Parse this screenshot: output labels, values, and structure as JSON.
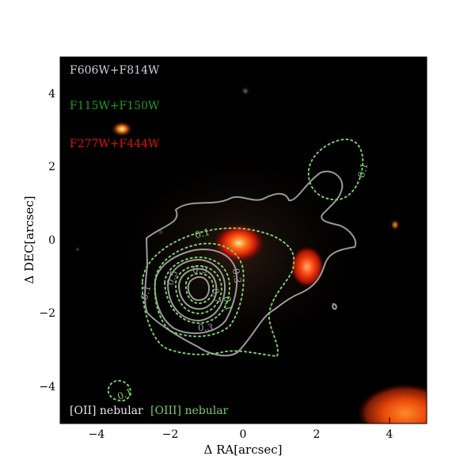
{
  "colors": {
    "background": "#ffffff",
    "image_bg": "#000000",
    "oii_contour": "#9a9a9a",
    "oiii_contour": "#7ccc6a",
    "legend_f606": "#c9d4dc",
    "legend_f115": "#1f9a1f",
    "legend_f277": "#e01010"
  },
  "axes": {
    "xlabel": "Δ RA[arcsec]",
    "ylabel": "Δ DEC[arcsec]",
    "xticks": [
      -4,
      -2,
      0,
      2,
      4
    ],
    "yticks": [
      4,
      2,
      0,
      -2,
      -4
    ],
    "xtick_labels": [
      "−4",
      "−2",
      "0",
      "2",
      "4"
    ],
    "ytick_labels": [
      "4",
      "2",
      "0",
      "−2",
      "−4"
    ],
    "xlim": [
      -5,
      5
    ],
    "ylim": [
      -5,
      5
    ]
  },
  "filters": {
    "f606": "F606W+F814W",
    "f115": "F115W+F150W",
    "f277": "F277W+F444W"
  },
  "legend": {
    "oii": "[OII] nebular",
    "oiii": "[OIII] nebular"
  },
  "contour_labels": {
    "l1": "0.1",
    "l2": "0.1",
    "l3": "0.1",
    "l4": "0.1",
    "l5": "0.3",
    "l6": "0.5",
    "l7": "0.9",
    "l8": "0.7",
    "l9": "0.3",
    "l10": "0.1"
  }
}
